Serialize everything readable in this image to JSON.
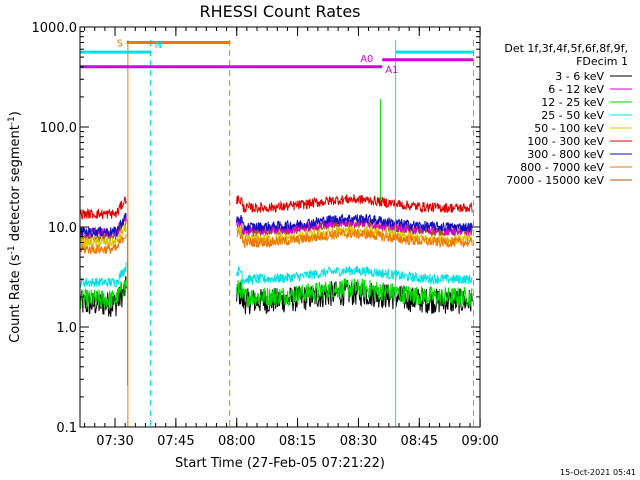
{
  "chart_data": {
    "type": "line",
    "title": "RHESSI Count Rates",
    "xlabel": "Start Time (27-Feb-05 07:21:22)",
    "ylabel_parts": [
      "Count Rate (s",
      "-1",
      " detector segment",
      "-1",
      ")"
    ],
    "y_scale": "log",
    "ylim": [
      0.1,
      1000.0
    ],
    "y_ticks": [
      {
        "value": 0.1,
        "label": "0.1"
      },
      {
        "value": 1.0,
        "label": "1.0"
      },
      {
        "value": 10.0,
        "label": "10.0"
      },
      {
        "value": 100.0,
        "label": "100.0"
      },
      {
        "value": 1000.0,
        "label": "1000.0"
      }
    ],
    "xlim_minutes": [
      0,
      98.6
    ],
    "x_ticks": [
      {
        "minutes": 8.633,
        "label": "07:30"
      },
      {
        "minutes": 23.633,
        "label": "07:45"
      },
      {
        "minutes": 38.633,
        "label": "08:00"
      },
      {
        "minutes": 53.633,
        "label": "08:15"
      },
      {
        "minutes": 68.633,
        "label": "08:30"
      },
      {
        "minutes": 83.633,
        "label": "08:45"
      },
      {
        "minutes": 98.633,
        "label": "09:00"
      }
    ],
    "legend_header": [
      "Det 1f,3f,4f,5f,6f,8f,9f,",
      "FDecim 1"
    ],
    "series": [
      {
        "name": "3 - 6 keV",
        "color": "#000000",
        "level": 1.8,
        "pre": 1.7
      },
      {
        "name": "6 - 12 keV",
        "color": "#d400d4",
        "level": 9.2,
        "pre": 8.8
      },
      {
        "name": "12 - 25 keV",
        "color": "#00d800",
        "level": 2.0,
        "pre": 1.9
      },
      {
        "name": "25 - 50 keV",
        "color": "#00e0e0",
        "level": 3.0,
        "pre": 2.8
      },
      {
        "name": "50 - 100 keV",
        "color": "#e0c000",
        "level": 7.5,
        "pre": 7.0
      },
      {
        "name": "100 - 300 keV",
        "color": "#e00000",
        "level": 15.5,
        "pre": 13.5
      },
      {
        "name": "300 - 800 keV",
        "color": "#1010c0",
        "level": 10.0,
        "pre": 9.0
      },
      {
        "name": "800 - 7000 keV",
        "color": "#f07800",
        "level": 7.0,
        "pre": 6.0
      },
      {
        "name": "7000 - 15000 keV",
        "color": "#a06000",
        "level": 9.0,
        "pre": 8.0
      }
    ],
    "data_gap_minutes": [
      11.5,
      38.5
    ],
    "state_bars": [
      {
        "label": "S",
        "color": "#f07800",
        "x0": 11.5,
        "x1": 36.9,
        "y": 700
      },
      {
        "label": "N",
        "color": "#00e0e0",
        "x0": 0,
        "x1": 17.4,
        "y": 560
      },
      {
        "label": "A0",
        "color": "#d400d4",
        "x0": 0,
        "x1": 74.5,
        "y": 400
      },
      {
        "label": "A1",
        "color": "#d400d4",
        "x0": 74.5,
        "x1": 97.0,
        "y": 470
      },
      {
        "label": "",
        "color": "#00e0e0",
        "x0": 77.8,
        "x1": 97.0,
        "y": 560
      }
    ],
    "vlines": [
      {
        "minutes": 0,
        "color": "#00e0e0",
        "style": "solid"
      },
      {
        "minutes": 11.8,
        "color": "#f07800",
        "style": "solid"
      },
      {
        "minutes": 17.4,
        "color": "#00e0e0",
        "style": "dashed"
      },
      {
        "minutes": 36.9,
        "color": "#f07800",
        "style": "dashed"
      },
      {
        "minutes": 77.8,
        "color": "#00e0e0",
        "style": "solid"
      },
      {
        "minutes": 97.0,
        "color": "#00e0e0",
        "style": "dashed"
      }
    ],
    "grid": false,
    "legend_position": "right"
  },
  "footer_timestamp": "15-Oct-2021 05:41"
}
